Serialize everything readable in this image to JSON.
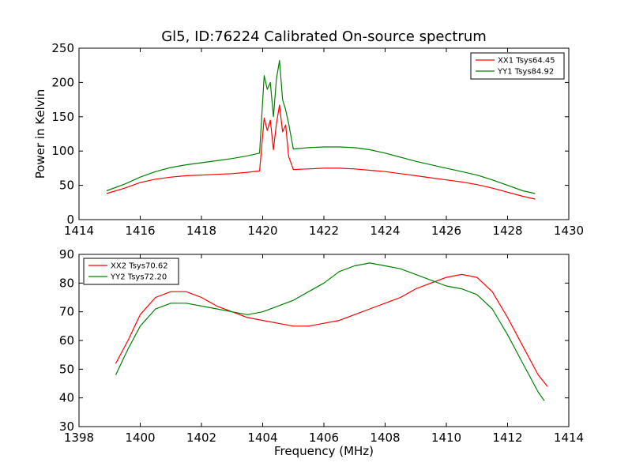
{
  "figure": {
    "title": "Gl5, ID:76224 Calibrated On-source spectrum"
  },
  "chart_data": [
    {
      "type": "line",
      "title": "Gl5, ID:76224 Calibrated On-source spectrum",
      "xlabel": "",
      "ylabel": "Power in Kelvin",
      "xlim": [
        1414,
        1430
      ],
      "ylim": [
        0,
        250
      ],
      "xticks": [
        "1414",
        "1416",
        "1418",
        "1420",
        "1422",
        "1424",
        "1426",
        "1428",
        "1430"
      ],
      "yticks": [
        "0",
        "50",
        "100",
        "150",
        "200",
        "250"
      ],
      "legend_position": "top-right",
      "grid": false,
      "series": [
        {
          "name": "XX1 Tsys64.45",
          "color": "#ff0000",
          "x": [
            1414.9,
            1415.5,
            1416.0,
            1416.5,
            1417.0,
            1417.5,
            1418.0,
            1418.5,
            1419.0,
            1419.5,
            1419.9,
            1420.05,
            1420.15,
            1420.25,
            1420.35,
            1420.45,
            1420.55,
            1420.65,
            1420.75,
            1420.85,
            1421.0,
            1421.5,
            1422.0,
            1422.5,
            1423.0,
            1423.5,
            1424.0,
            1424.5,
            1425.0,
            1425.5,
            1426.0,
            1426.5,
            1427.0,
            1427.5,
            1428.0,
            1428.5,
            1428.9
          ],
          "y": [
            38,
            46,
            54,
            59,
            62,
            64,
            65,
            66,
            67,
            69,
            71,
            148,
            130,
            145,
            102,
            140,
            167,
            128,
            138,
            92,
            73,
            74,
            75,
            75,
            74,
            72,
            70,
            67,
            64,
            61,
            58,
            55,
            51,
            46,
            40,
            34,
            30
          ]
        },
        {
          "name": "YY1 Tsys84.92",
          "color": "#008000",
          "x": [
            1414.9,
            1415.5,
            1416.0,
            1416.5,
            1417.0,
            1417.5,
            1418.0,
            1418.5,
            1419.0,
            1419.5,
            1419.9,
            1420.05,
            1420.15,
            1420.25,
            1420.35,
            1420.45,
            1420.55,
            1420.65,
            1420.75,
            1420.85,
            1421.0,
            1421.5,
            1422.0,
            1422.5,
            1423.0,
            1423.5,
            1424.0,
            1424.5,
            1425.0,
            1425.5,
            1426.0,
            1426.5,
            1427.0,
            1427.5,
            1428.0,
            1428.5,
            1428.9
          ],
          "y": [
            42,
            52,
            62,
            70,
            76,
            80,
            83,
            86,
            89,
            93,
            97,
            210,
            190,
            200,
            150,
            205,
            232,
            175,
            160,
            140,
            103,
            105,
            106,
            106,
            105,
            102,
            97,
            91,
            85,
            80,
            75,
            70,
            65,
            58,
            50,
            42,
            38
          ]
        }
      ]
    },
    {
      "type": "line",
      "title": "",
      "xlabel": "Frequency (MHz)",
      "ylabel": "",
      "xlim": [
        1398,
        1414
      ],
      "ylim": [
        30,
        90
      ],
      "xticks": [
        "1398",
        "1400",
        "1402",
        "1404",
        "1406",
        "1408",
        "1410",
        "1412",
        "1414"
      ],
      "yticks": [
        "30",
        "40",
        "50",
        "60",
        "70",
        "80",
        "90"
      ],
      "legend_position": "top-left",
      "grid": false,
      "series": [
        {
          "name": "XX2 Tsys70.62",
          "color": "#ff0000",
          "x": [
            1399.2,
            1399.6,
            1400.0,
            1400.5,
            1401.0,
            1401.5,
            1402.0,
            1402.5,
            1403.0,
            1403.5,
            1404.0,
            1404.5,
            1405.0,
            1405.5,
            1406.0,
            1406.5,
            1407.0,
            1407.5,
            1408.0,
            1408.5,
            1409.0,
            1409.5,
            1410.0,
            1410.5,
            1411.0,
            1411.5,
            1412.0,
            1412.5,
            1413.0,
            1413.3
          ],
          "y": [
            52,
            60,
            69,
            75,
            77,
            77,
            75,
            72,
            70,
            68,
            67,
            66,
            65,
            65,
            66,
            67,
            69,
            71,
            73,
            75,
            78,
            80,
            82,
            83,
            82,
            77,
            68,
            58,
            48,
            44
          ]
        },
        {
          "name": "YY2 Tsys72.20",
          "color": "#008000",
          "x": [
            1399.2,
            1399.6,
            1400.0,
            1400.5,
            1401.0,
            1401.5,
            1402.0,
            1402.5,
            1403.0,
            1403.5,
            1404.0,
            1404.5,
            1405.0,
            1405.5,
            1406.0,
            1406.5,
            1407.0,
            1407.5,
            1408.0,
            1408.5,
            1409.0,
            1409.5,
            1410.0,
            1410.5,
            1411.0,
            1411.5,
            1412.0,
            1412.5,
            1413.0,
            1413.2
          ],
          "y": [
            48,
            57,
            65,
            71,
            73,
            73,
            72,
            71,
            70,
            69,
            70,
            72,
            74,
            77,
            80,
            84,
            86,
            87,
            86,
            85,
            83,
            81,
            79,
            78,
            76,
            71,
            62,
            52,
            42,
            39
          ]
        }
      ]
    }
  ]
}
